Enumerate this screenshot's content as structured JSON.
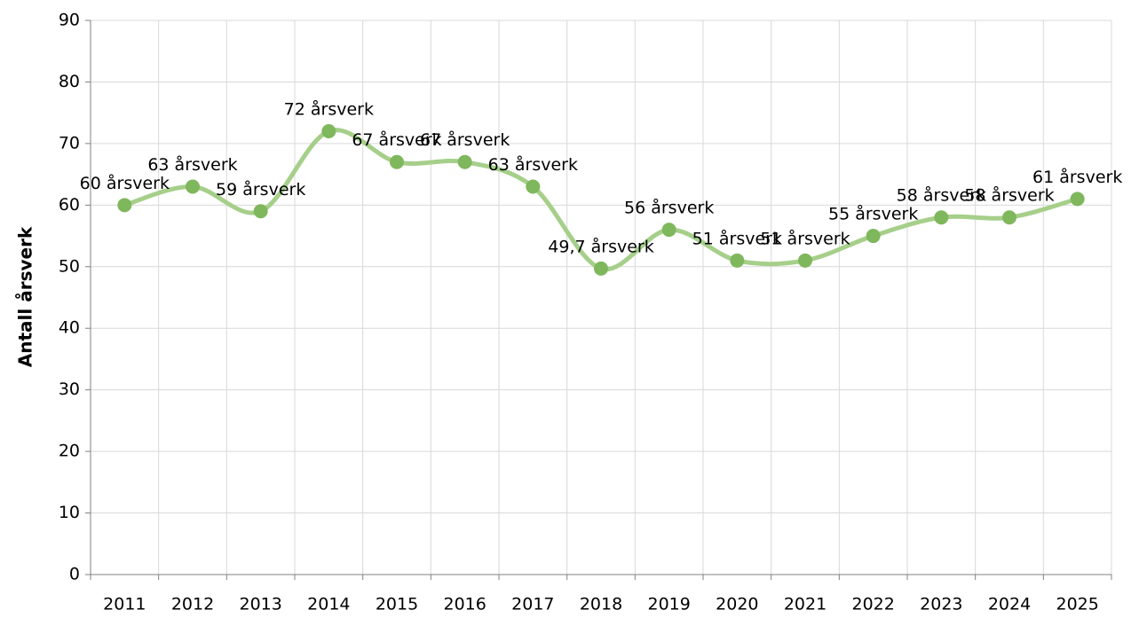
{
  "chart_data": {
    "type": "line",
    "y_label": "Antall årsverk",
    "categories": [
      "2011",
      "2012",
      "2013",
      "2014",
      "2015",
      "2016",
      "2017",
      "2018",
      "2019",
      "2020",
      "2021",
      "2022",
      "2023",
      "2024",
      "2025"
    ],
    "values": [
      60,
      63,
      59,
      72,
      67,
      67,
      63,
      49.7,
      56,
      51,
      51,
      55,
      58,
      58,
      61
    ],
    "value_labels": [
      "60 årsverk",
      "63 årsverk",
      "59 årsverk",
      "72 årsverk",
      "67 årsverk",
      "67 årsverk",
      "63 årsverk",
      "49,7 årsverk",
      "56 årsverk",
      "51 årsverk",
      "51 årsverk",
      "55 årsverk",
      "58 årsverk",
      "58 årsverk",
      "61 årsverk"
    ],
    "color": "#a6cf8a",
    "marker_color": "#7fb75d",
    "ylim": [
      0,
      90
    ],
    "yticks": [
      0,
      10,
      20,
      30,
      40,
      50,
      60,
      70,
      80,
      90
    ],
    "grid": true,
    "smooth": true
  }
}
